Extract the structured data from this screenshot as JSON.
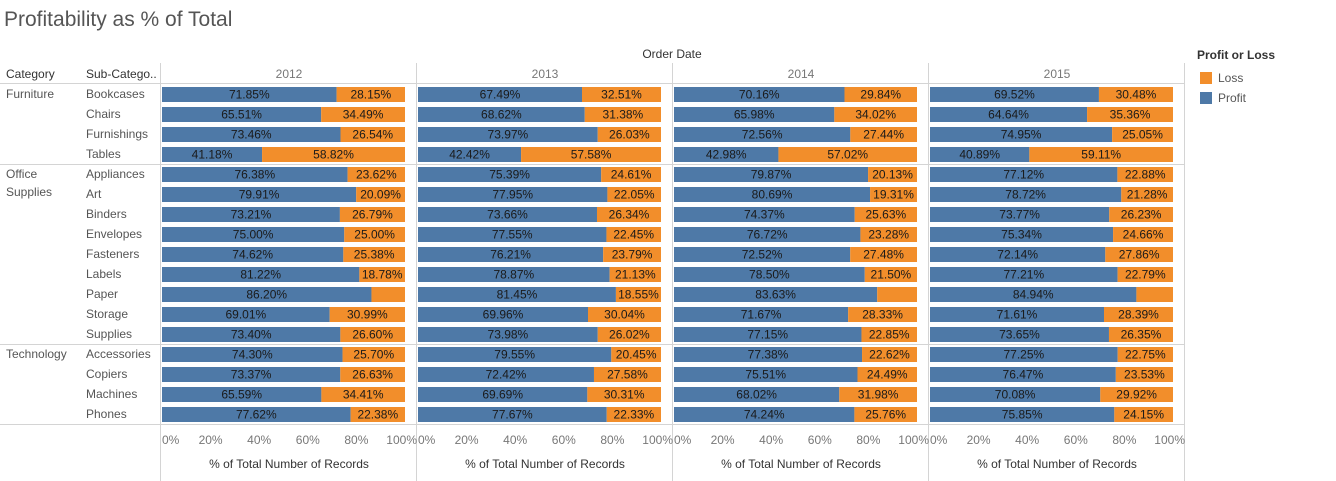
{
  "title": "Profitability as % of Total",
  "colors": {
    "profit": "#4e79a7",
    "loss": "#f28e2b"
  },
  "legend": {
    "title": "Profit or Loss",
    "items": [
      {
        "label": "Loss",
        "color": "#f28e2b"
      },
      {
        "label": "Profit",
        "color": "#4e79a7"
      }
    ]
  },
  "chart_data": {
    "type": "bar",
    "stacked": true,
    "column_header": "Order Date",
    "row_headers": [
      "Category",
      "Sub-Catego.."
    ],
    "columns": [
      "2012",
      "2013",
      "2014",
      "2015"
    ],
    "xlabel": "% of Total Number of Records",
    "xlim": [
      0,
      100
    ],
    "x_ticks": [
      "0%",
      "20%",
      "40%",
      "60%",
      "80%",
      "100%"
    ],
    "categories": [
      {
        "name": "Furniture",
        "label_lines": [
          "Furniture"
        ],
        "subcategories": [
          "Bookcases",
          "Chairs",
          "Furnishings",
          "Tables"
        ]
      },
      {
        "name": "Office Supplies",
        "label_lines": [
          "Office",
          "Supplies"
        ],
        "subcategories": [
          "Appliances",
          "Art",
          "Binders",
          "Envelopes",
          "Fasteners",
          "Labels",
          "Paper",
          "Storage",
          "Supplies"
        ]
      },
      {
        "name": "Technology",
        "label_lines": [
          "Technology"
        ],
        "subcategories": [
          "Accessories",
          "Copiers",
          "Machines",
          "Phones"
        ]
      }
    ],
    "series": [
      {
        "name": "Profit",
        "values": [
          [
            71.85,
            65.51,
            73.46,
            41.18,
            76.38,
            79.91,
            73.21,
            75.0,
            74.62,
            81.22,
            86.2,
            69.01,
            73.4,
            74.3,
            73.37,
            65.59,
            77.62
          ],
          [
            67.49,
            68.62,
            73.97,
            42.42,
            75.39,
            77.95,
            73.66,
            77.55,
            76.21,
            78.87,
            81.45,
            69.96,
            73.98,
            79.55,
            72.42,
            69.69,
            77.67
          ],
          [
            70.16,
            65.98,
            72.56,
            42.98,
            79.87,
            80.69,
            74.37,
            76.72,
            72.52,
            78.5,
            83.63,
            71.67,
            77.15,
            77.38,
            75.51,
            68.02,
            74.24
          ],
          [
            69.52,
            64.64,
            74.95,
            40.89,
            77.12,
            78.72,
            73.77,
            75.34,
            72.14,
            77.21,
            84.94,
            71.61,
            73.65,
            77.25,
            76.47,
            70.08,
            75.85
          ]
        ]
      },
      {
        "name": "Loss",
        "values": [
          [
            28.15,
            34.49,
            26.54,
            58.82,
            23.62,
            20.09,
            26.79,
            25.0,
            25.38,
            18.78,
            13.8,
            30.99,
            26.6,
            25.7,
            26.63,
            34.41,
            22.38
          ],
          [
            32.51,
            31.38,
            26.03,
            57.58,
            24.61,
            22.05,
            26.34,
            22.45,
            23.79,
            21.13,
            18.55,
            30.04,
            26.02,
            20.45,
            27.58,
            30.31,
            22.33
          ],
          [
            29.84,
            34.02,
            27.44,
            57.02,
            20.13,
            19.31,
            25.63,
            23.28,
            27.48,
            21.5,
            16.37,
            28.33,
            22.85,
            22.62,
            24.49,
            31.98,
            25.76
          ],
          [
            30.48,
            35.36,
            25.05,
            59.11,
            22.88,
            21.28,
            26.23,
            24.66,
            27.86,
            22.79,
            15.06,
            28.39,
            26.35,
            22.75,
            23.53,
            29.92,
            24.15
          ]
        ]
      }
    ],
    "labels": {
      "Profit": [
        [
          "71.85%",
          "65.51%",
          "73.46%",
          "41.18%",
          "76.38%",
          "79.91%",
          "73.21%",
          "75.00%",
          "74.62%",
          "81.22%",
          "86.20%",
          "69.01%",
          "73.40%",
          "74.30%",
          "73.37%",
          "65.59%",
          "77.62%"
        ],
        [
          "67.49%",
          "68.62%",
          "73.97%",
          "42.42%",
          "75.39%",
          "77.95%",
          "73.66%",
          "77.55%",
          "76.21%",
          "78.87%",
          "81.45%",
          "69.96%",
          "73.98%",
          "79.55%",
          "72.42%",
          "69.69%",
          "77.67%"
        ],
        [
          "70.16%",
          "65.98%",
          "72.56%",
          "42.98%",
          "79.87%",
          "80.69%",
          "74.37%",
          "76.72%",
          "72.52%",
          "78.50%",
          "83.63%",
          "71.67%",
          "77.15%",
          "77.38%",
          "75.51%",
          "68.02%",
          "74.24%"
        ],
        [
          "69.52%",
          "64.64%",
          "74.95%",
          "40.89%",
          "77.12%",
          "78.72%",
          "73.77%",
          "75.34%",
          "72.14%",
          "77.21%",
          "84.94%",
          "71.61%",
          "73.65%",
          "77.25%",
          "76.47%",
          "70.08%",
          "75.85%"
        ]
      ],
      "Loss": [
        [
          "28.15%",
          "34.49%",
          "26.54%",
          "58.82%",
          "23.62%",
          "20.09%",
          "26.79%",
          "25.00%",
          "25.38%",
          "18.78%",
          "",
          "30.99%",
          "26.60%",
          "25.70%",
          "26.63%",
          "34.41%",
          "22.38%"
        ],
        [
          "32.51%",
          "31.38%",
          "26.03%",
          "57.58%",
          "24.61%",
          "22.05%",
          "26.34%",
          "22.45%",
          "23.79%",
          "21.13%",
          "18.55%",
          "30.04%",
          "26.02%",
          "20.45%",
          "27.58%",
          "30.31%",
          "22.33%"
        ],
        [
          "29.84%",
          "34.02%",
          "27.44%",
          "57.02%",
          "20.13%",
          "19.31%",
          "25.63%",
          "23.28%",
          "27.48%",
          "21.50%",
          "",
          "28.33%",
          "22.85%",
          "22.62%",
          "24.49%",
          "31.98%",
          "25.76%"
        ],
        [
          "30.48%",
          "35.36%",
          "25.05%",
          "59.11%",
          "22.88%",
          "21.28%",
          "26.23%",
          "24.66%",
          "27.86%",
          "22.79%",
          "",
          "28.39%",
          "26.35%",
          "22.75%",
          "23.53%",
          "29.92%",
          "24.15%"
        ]
      ]
    },
    "legend_position": "right"
  }
}
